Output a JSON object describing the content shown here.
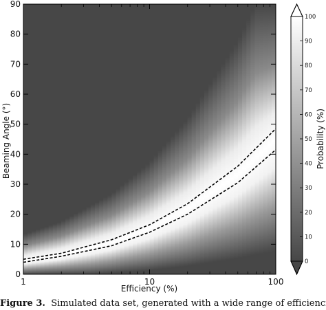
{
  "chart_data": {
    "type": "heatmap",
    "x_scale": "log",
    "xlim": [
      1,
      100
    ],
    "ylim": [
      0,
      90
    ],
    "xlabel": "Efficiency (%)",
    "ylabel": "Beaming Angle (°)",
    "x_ticks": [
      "1",
      "10",
      "100"
    ],
    "y_ticks": [
      "0",
      "10",
      "20",
      "30",
      "40",
      "50",
      "60",
      "70",
      "80",
      "90"
    ],
    "grid": false,
    "colormap": "grayscale, dark gray (0) to white (100)",
    "colorbar": {
      "label": "Probability (%)",
      "range": [
        0,
        100
      ],
      "ticks": [
        "0",
        "10",
        "20",
        "30",
        "40",
        "50",
        "60",
        "70",
        "80",
        "90",
        "100"
      ],
      "placement": "right"
    },
    "contours": [
      {
        "style": "dashed black",
        "x": [
          1,
          2,
          5,
          10,
          20,
          50,
          100
        ],
        "y": [
          5,
          7,
          11.5,
          16.5,
          23.5,
          36,
          48.5
        ]
      },
      {
        "style": "dashed black",
        "x": [
          1,
          2,
          5,
          10,
          20,
          50,
          100
        ],
        "y": [
          4,
          6,
          9.5,
          14,
          20,
          30.5,
          41.5
        ]
      }
    ]
  },
  "caption": {
    "label": "Figure 3.",
    "text": "Simulated data set, generated with a wide range of efficiencies"
  },
  "colors": {
    "background": "#474747",
    "peak": "#ffffff",
    "contour": "#000000"
  }
}
